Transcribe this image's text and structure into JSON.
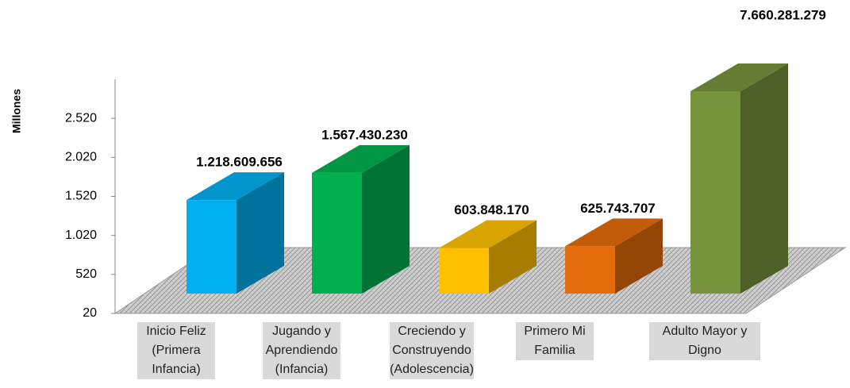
{
  "chart_data": {
    "type": "bar3d",
    "ylabel": "Millones",
    "categories": [
      [
        "Inicio Feliz",
        "(Primera",
        "Infancia)"
      ],
      [
        "Jugando y",
        "Aprendiendo",
        "(Infancia)"
      ],
      [
        "Creciendo y",
        "Construyendo",
        "(Adolescencia)"
      ],
      [
        "Primero Mi",
        "Familia"
      ],
      [
        "Adulto Mayor y",
        "Digno"
      ]
    ],
    "values": [
      1218.609656,
      1567.43023,
      603.84817,
      625.743707,
      7660.281279
    ],
    "value_labels": [
      "1.218.609.656",
      "1.567.430.230",
      "603.848.170",
      "625.743.707",
      "7.660.281.279"
    ],
    "colors": [
      "#00b0f0",
      "#00b050",
      "#ffc000",
      "#e46c0a",
      "#77933c"
    ],
    "ylim": [
      20,
      3020
    ],
    "yticks": [
      20,
      520,
      {
        "value": 1020,
        "label": "1.020"
      },
      {
        "value": 1520,
        "label": "1.520"
      },
      {
        "value": 2020,
        "label": "2.020"
      },
      {
        "value": 2520,
        "label": "2.520"
      }
    ]
  }
}
